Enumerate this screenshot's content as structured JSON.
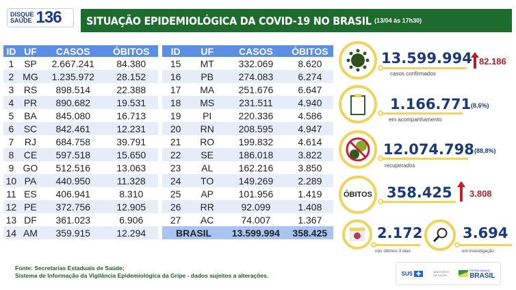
{
  "logo": {
    "line1": "DISQUE",
    "line2": "SAÚDE",
    "number": "136"
  },
  "header": {
    "title": "SITUAÇÃO EPIDEMIOLÓGICA DA COVID-19 NO BRASIL",
    "date": "(13/04 às 17h30)"
  },
  "table": {
    "columns": [
      "ID",
      "UF",
      "CASOS",
      "ÓBITOS"
    ],
    "rows_left": [
      [
        "1",
        "SP",
        "2.667.241",
        "84.380"
      ],
      [
        "2",
        "MG",
        "1.235.972",
        "28.152"
      ],
      [
        "3",
        "RS",
        "898.514",
        "22.388"
      ],
      [
        "4",
        "PR",
        "890.682",
        "19.531"
      ],
      [
        "5",
        "BA",
        "845.080",
        "16.713"
      ],
      [
        "6",
        "SC",
        "842.461",
        "12.231"
      ],
      [
        "7",
        "RJ",
        "684.758",
        "39.791"
      ],
      [
        "8",
        "CE",
        "597.518",
        "15.650"
      ],
      [
        "9",
        "GO",
        "512.516",
        "13.063"
      ],
      [
        "10",
        "PA",
        "440.950",
        "11.328"
      ],
      [
        "11",
        "ES",
        "406.941",
        "8.310"
      ],
      [
        "12",
        "PE",
        "372.756",
        "12.905"
      ],
      [
        "13",
        "DF",
        "361.023",
        "6.906"
      ],
      [
        "14",
        "AM",
        "359.915",
        "12.294"
      ]
    ],
    "rows_right": [
      [
        "15",
        "MT",
        "332.069",
        "8.620"
      ],
      [
        "16",
        "PB",
        "274.083",
        "6.274"
      ],
      [
        "17",
        "MA",
        "251.676",
        "6.647"
      ],
      [
        "18",
        "MS",
        "231.511",
        "4.940"
      ],
      [
        "19",
        "PI",
        "220.336",
        "4.586"
      ],
      [
        "20",
        "RN",
        "208.595",
        "4.947"
      ],
      [
        "21",
        "RO",
        "199.832",
        "4.614"
      ],
      [
        "22",
        "SE",
        "186.018",
        "3.822"
      ],
      [
        "23",
        "AL",
        "162.216",
        "3.850"
      ],
      [
        "24",
        "TO",
        "149.269",
        "2.289"
      ],
      [
        "25",
        "AP",
        "101.956",
        "1.419"
      ],
      [
        "26",
        "RR",
        "92.099",
        "1.408"
      ],
      [
        "27",
        "AC",
        "74.007",
        "1.367"
      ]
    ],
    "total": {
      "label": "BRASIL",
      "casos": "13.599.994",
      "obitos": "358.425"
    }
  },
  "stats": {
    "confirmed": {
      "value": "13.599.994",
      "increase": "82.186",
      "label": "casos confirmados",
      "icon": "virus-icon"
    },
    "monitoring": {
      "value": "1.166.771",
      "pct": "(8,6%)",
      "label": "em acompanhamento",
      "icon": "clipboard-icon"
    },
    "recovered": {
      "value": "12.074.798",
      "pct": "(88,8%)",
      "label": "recuperados",
      "icon": "no-virus-icon"
    },
    "deaths": {
      "badge": "ÓBITOS",
      "value": "358.425",
      "increase": "3.808"
    },
    "recent": {
      "value": "2.172",
      "label": "nos últimos 3 dias",
      "icon": "calendar-icon"
    },
    "investigation": {
      "value": "3.694",
      "label": "em investigação",
      "icon": "magnifier-icon"
    }
  },
  "footer": {
    "line1": "Fonte: Secretarias Estaduais de Saúde;",
    "line2": "Sistema de Informação da Vigilância Epidemiológica da Gripe - dados sujeitos a alterações."
  },
  "brand": {
    "sus": "SUS",
    "ministry": "MINISTÉRIO DA SAÚDE",
    "patria": "PÁTRIA AMADA",
    "brasil": "BRASIL"
  },
  "colors": {
    "green": "#1e6b2e",
    "header_blue": "#5b8fe4",
    "number_blue": "#1b3a78",
    "yellow": "#f1d25a",
    "red": "#b0202a"
  }
}
